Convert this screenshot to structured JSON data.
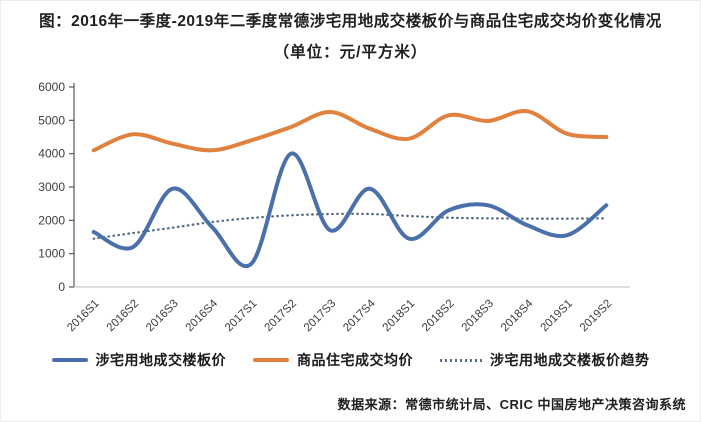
{
  "title": {
    "line1": "图：2016年一季度-2019年二季度常德涉宅用地成交楼板价与商品住宅成交均价变化情况",
    "line2": "（单位：元/平方米）"
  },
  "footer": {
    "source": "数据来源：常德市统计局、CRIC 中国房地产决策咨询系统"
  },
  "colors": {
    "land_price_line": "#4a70ab",
    "housing_price_line": "#e0813e",
    "trend_line": "#5a6e84",
    "y_axis": "#595959",
    "x_axis": "#c9c9c9",
    "tick_text": "#3d3d3d"
  },
  "chart_data": {
    "type": "line",
    "title": "2016年一季度-2019年二季度常德涉宅用地成交楼板价与商品住宅成交均价变化情况",
    "unit": "元/平方米",
    "categories": [
      "2016S1",
      "2016S2",
      "2016S3",
      "2016S4",
      "2017S1",
      "2017S2",
      "2017S3",
      "2017S4",
      "2018S1",
      "2018S2",
      "2018S3",
      "2018S4",
      "2019S1",
      "2019S2"
    ],
    "series": [
      {
        "name": "涉宅用地成交楼板价",
        "style": "solid",
        "color": "#4a70ab",
        "width": 4,
        "values": [
          1650,
          1200,
          2950,
          1800,
          700,
          4000,
          1700,
          2950,
          1450,
          2300,
          2450,
          1850,
          1550,
          2450
        ]
      },
      {
        "name": "商品住宅成交均价",
        "style": "solid",
        "color": "#e0813e",
        "width": 4,
        "values": [
          4100,
          4580,
          4300,
          4100,
          4400,
          4800,
          5250,
          4750,
          4450,
          5150,
          4980,
          5270,
          4600,
          4500
        ]
      },
      {
        "name": "涉宅用地成交楼板价趋势",
        "style": "dotted",
        "color": "#5a6e84",
        "width": 2.3,
        "values": [
          1450,
          1620,
          1780,
          1950,
          2070,
          2150,
          2190,
          2190,
          2130,
          2080,
          2060,
          2050,
          2050,
          2060
        ]
      }
    ],
    "ylim": [
      0,
      6000
    ],
    "ytick_step": 1000,
    "grid": false,
    "legend_position": "bottom"
  }
}
